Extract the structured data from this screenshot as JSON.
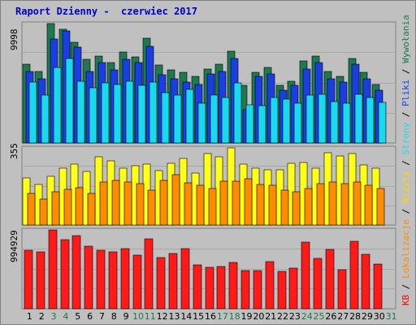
{
  "title": "Raport Dzienny -  czerwiec 2017",
  "colors": {
    "background": "#c0c0c0",
    "panel": "#c0c0c0",
    "title": "#0000c8",
    "visits": "#1e7850",
    "pages": "#1a3fe0",
    "files": "#1ad8f0",
    "hosts": "#ff8c00",
    "hits": "#ffff1a",
    "kb": "#ff1a1a",
    "weekday_label": "#000000",
    "weekend_label": "#1e7850"
  },
  "right_axis_labels": [
    {
      "text": "KB",
      "color": "#ff0000"
    },
    {
      "text": " / ",
      "color": "#000000"
    },
    {
      "text": "Lokalizacje",
      "color": "#ff8c00"
    },
    {
      "text": " / ",
      "color": "#000000"
    },
    {
      "text": "Wizyty",
      "color": "#ffd700"
    },
    {
      "text": " / ",
      "color": "#000000"
    },
    {
      "text": "Strony",
      "color": "#1ad8f0"
    },
    {
      "text": " / ",
      "color": "#000000"
    },
    {
      "text": "Pliki",
      "color": "#1a3fe0"
    },
    {
      "text": " / ",
      "color": "#000000"
    },
    {
      "text": "Wywołania",
      "color": "#1e7850"
    }
  ],
  "chart_data": [
    {
      "type": "bar",
      "title": "",
      "y_max_label": "9998",
      "ylim": [
        0,
        9998
      ],
      "categories": [
        "1",
        "2",
        "3",
        "4",
        "5",
        "6",
        "7",
        "8",
        "9",
        "10",
        "11",
        "12",
        "13",
        "14",
        "15",
        "16",
        "17",
        "18",
        "19",
        "20",
        "21",
        "22",
        "23",
        "24",
        "25",
        "26",
        "27",
        "28",
        "29",
        "30",
        "31"
      ],
      "weekend_days": [
        "3",
        "4",
        "10",
        "11",
        "17",
        "18",
        "24",
        "25",
        "31"
      ],
      "series": [
        {
          "name": "Wywołania",
          "color": "#1e7850",
          "values": [
            6600,
            6000,
            9998,
            9500,
            8400,
            7000,
            7300,
            6700,
            7600,
            7200,
            8800,
            6500,
            6100,
            5900,
            5600,
            6200,
            6600,
            7700,
            4800,
            5900,
            6300,
            4800,
            5200,
            6900,
            7300,
            6000,
            5600,
            7100,
            5900,
            4900,
            0
          ]
        },
        {
          "name": "Pliki",
          "color": "#1a3fe0",
          "values": [
            6000,
            5400,
            8700,
            9400,
            8000,
            6000,
            6700,
            6100,
            7000,
            6700,
            8100,
            5700,
            5400,
            5100,
            4900,
            5800,
            6000,
            7100,
            2800,
            5600,
            5800,
            4400,
            4800,
            6200,
            6700,
            5400,
            5100,
            6600,
            5400,
            4400,
            0
          ]
        },
        {
          "name": "Strony",
          "color": "#1ad8f0",
          "values": [
            5100,
            4000,
            6300,
            7100,
            5200,
            4600,
            5000,
            4900,
            5200,
            4800,
            5100,
            4200,
            4000,
            4500,
            3300,
            4000,
            3800,
            5000,
            3200,
            3100,
            3800,
            3700,
            3300,
            4000,
            4100,
            3500,
            3300,
            4100,
            3800,
            3400,
            0
          ]
        }
      ]
    },
    {
      "type": "bar",
      "title": "",
      "y_max_label": "355",
      "ylim": [
        0,
        355
      ],
      "categories": [
        "1",
        "2",
        "3",
        "4",
        "5",
        "6",
        "7",
        "8",
        "9",
        "10",
        "11",
        "12",
        "13",
        "14",
        "15",
        "16",
        "17",
        "18",
        "19",
        "20",
        "21",
        "22",
        "23",
        "24",
        "25",
        "26",
        "27",
        "28",
        "29",
        "30",
        "31"
      ],
      "series": [
        {
          "name": "Wizyty",
          "color": "#ffff1a",
          "values": [
            217,
            185,
            225,
            260,
            279,
            247,
            314,
            297,
            262,
            272,
            279,
            250,
            283,
            307,
            240,
            327,
            315,
            355,
            280,
            262,
            255,
            253,
            284,
            287,
            260,
            334,
            317,
            330,
            277,
            261,
            0
          ]
        },
        {
          "name": "Lokalizacje",
          "color": "#ff8c00",
          "values": [
            145,
            121,
            154,
            163,
            172,
            145,
            198,
            204,
            198,
            190,
            161,
            206,
            231,
            195,
            184,
            168,
            200,
            203,
            213,
            188,
            182,
            160,
            155,
            168,
            191,
            197,
            192,
            197,
            182,
            170,
            0
          ]
        }
      ]
    },
    {
      "type": "bar",
      "title": "",
      "y_max_label": "994929",
      "ylim": [
        0,
        994929
      ],
      "categories": [
        "1",
        "2",
        "3",
        "4",
        "5",
        "6",
        "7",
        "8",
        "9",
        "10",
        "11",
        "12",
        "13",
        "14",
        "15",
        "16",
        "17",
        "18",
        "19",
        "20",
        "21",
        "22",
        "23",
        "24",
        "25",
        "26",
        "27",
        "28",
        "29",
        "30",
        "31"
      ],
      "series": [
        {
          "name": "KB",
          "color": "#ff1a1a",
          "values": [
            740000,
            720000,
            994929,
            870000,
            928000,
            790000,
            740000,
            720000,
            760000,
            680000,
            880000,
            650000,
            700000,
            756000,
            550000,
            520000,
            530000,
            582000,
            480000,
            478000,
            590000,
            470000,
            515000,
            840000,
            640000,
            750000,
            495000,
            849000,
            690000,
            568000,
            0
          ]
        }
      ]
    }
  ]
}
